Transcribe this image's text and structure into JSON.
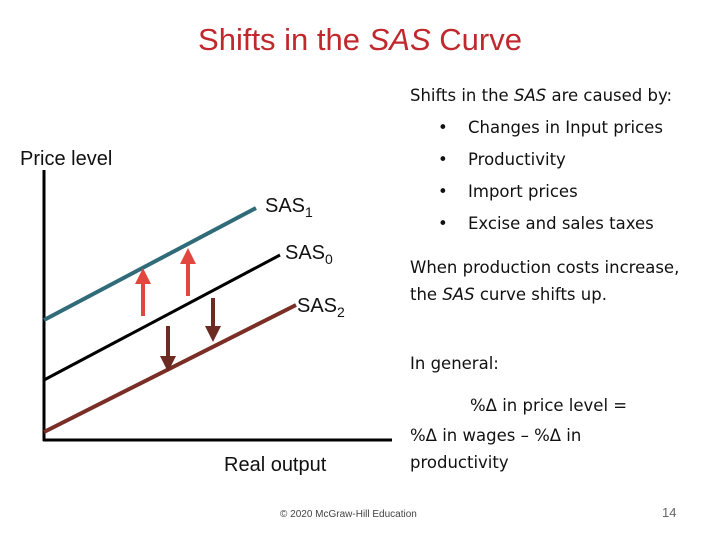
{
  "title": {
    "before": "Shifts in the ",
    "italic": "SAS",
    "after": " Curve"
  },
  "graph": {
    "y_axis_label": "Price level",
    "x_axis_label": "Real output",
    "curves": [
      {
        "name": "SAS",
        "subscript": "1"
      },
      {
        "name": "SAS",
        "subscript": "0"
      },
      {
        "name": "SAS",
        "subscript": "2"
      }
    ]
  },
  "text": {
    "intro": {
      "before": "Shifts in the ",
      "italic": "SAS",
      "after": " are caused by:"
    },
    "bullets": [
      "Changes in Input prices",
      "Productivity",
      "Import prices",
      "Excise and sales taxes"
    ],
    "paragraph": {
      "before": "When production costs increase, the ",
      "italic": "SAS",
      "after": " curve shifts up."
    },
    "in_general": "In general:",
    "formula_line1": "%Δ in price level =",
    "formula_line2": "%Δ in wages – %Δ in productivity"
  },
  "footer": {
    "copyright": "© 2020 McGraw-Hill Education",
    "page": "14"
  }
}
